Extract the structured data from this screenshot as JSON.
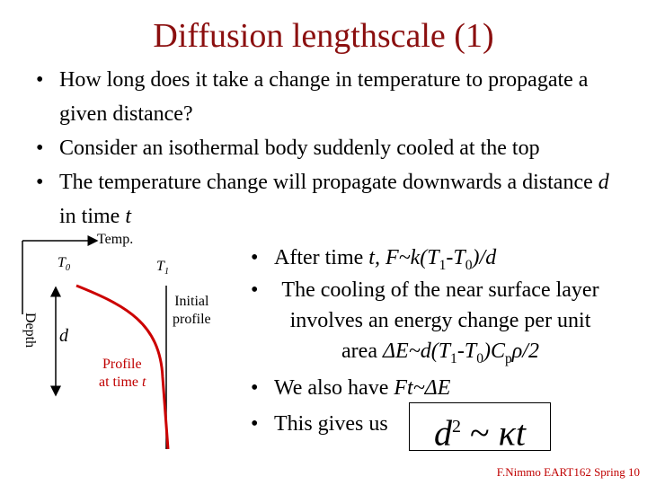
{
  "title": "Diffusion lengthscale (1)",
  "bullets": [
    [
      "How long does it take a change in temperature to propagate a given distance?"
    ],
    [
      "Consider an isothermal body suddenly cooled at the top"
    ],
    [
      "The temperature change will propagate downwards a distance ",
      "d",
      " in time ",
      "t"
    ]
  ],
  "diagram": {
    "axis_x": "Temp.",
    "axis_y": "Depth",
    "t0": [
      "T",
      "0"
    ],
    "t1": [
      "T",
      "1"
    ],
    "depth": "d",
    "initial": [
      "Initial",
      "profile"
    ],
    "profile": [
      "Profile",
      "at time ",
      "t"
    ]
  },
  "right_bullets": [
    [
      "After time ",
      "t, F~k(T",
      "1",
      "-T",
      "0",
      ")/d"
    ],
    [
      "The cooling of the near surface layer involves an energy change per unit area ",
      "ΔE~d(T",
      "1",
      "-T",
      "0",
      ")C",
      "p",
      "ρ/2"
    ],
    [
      "We also have ",
      "Ft~ΔE"
    ],
    [
      "This gives us"
    ]
  ],
  "equation": [
    "d",
    "2",
    "~",
    "κt"
  ],
  "footer": "F.Nimmo EART162 Spring 10"
}
